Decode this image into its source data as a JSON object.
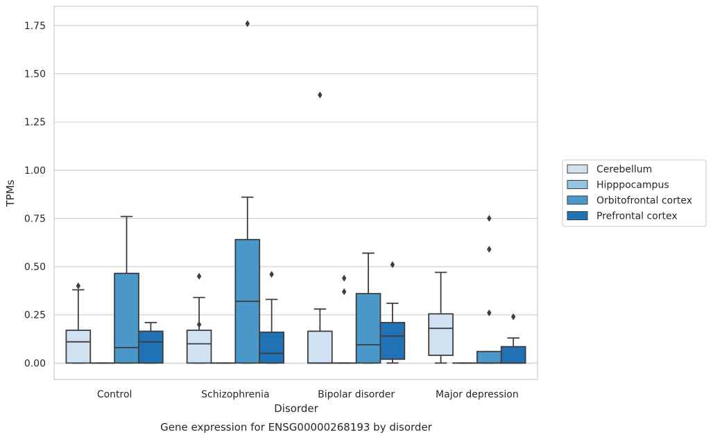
{
  "caption": "Gene expression for ENSG00000268193 by disorder",
  "chart_data": {
    "type": "box",
    "title": "",
    "xlabel": "Disorder",
    "ylabel": "TPMs",
    "ylim": [
      -0.085,
      1.85
    ],
    "yticks": [
      0.0,
      0.25,
      0.5,
      0.75,
      1.0,
      1.25,
      1.5,
      1.75
    ],
    "ytick_labels": [
      "0.00",
      "0.25",
      "0.50",
      "0.75",
      "1.00",
      "1.25",
      "1.50",
      "1.75"
    ],
    "grid": "horizontal",
    "legend_position": "right",
    "categories": [
      "Control",
      "Schizophrenia",
      "Bipolar disorder",
      "Major depression"
    ],
    "series": [
      {
        "name": "Cerebellum",
        "color": "#d0e1f2",
        "boxes": [
          {
            "whislo": 0.0,
            "q1": 0.0,
            "med": 0.11,
            "q3": 0.17,
            "whishi": 0.38,
            "fliers": [
              0.4
            ]
          },
          {
            "whislo": 0.0,
            "q1": 0.0,
            "med": 0.1,
            "q3": 0.17,
            "whishi": 0.34,
            "fliers": [
              0.2,
              0.45
            ]
          },
          {
            "whislo": 0.0,
            "q1": 0.0,
            "med": 0.0,
            "q3": 0.165,
            "whishi": 0.28,
            "fliers": [
              1.39
            ]
          },
          {
            "whislo": 0.0,
            "q1": 0.04,
            "med": 0.18,
            "q3": 0.255,
            "whishi": 0.47,
            "fliers": []
          }
        ]
      },
      {
        "name": "Hipppocampus",
        "color": "#94c4df",
        "boxes": [
          {
            "whislo": 0.0,
            "q1": 0.0,
            "med": 0.0,
            "q3": 0.0,
            "whishi": 0.0,
            "fliers": []
          },
          {
            "whislo": 0.0,
            "q1": 0.0,
            "med": 0.0,
            "q3": 0.0,
            "whishi": 0.0,
            "fliers": []
          },
          {
            "whislo": 0.0,
            "q1": 0.0,
            "med": 0.0,
            "q3": 0.0,
            "whishi": 0.0,
            "fliers": [
              0.37,
              0.44
            ]
          },
          {
            "whislo": 0.0,
            "q1": 0.0,
            "med": 0.0,
            "q3": 0.0,
            "whishi": 0.0,
            "fliers": []
          }
        ]
      },
      {
        "name": "Orbitofrontal cortex",
        "color": "#4a98c9",
        "boxes": [
          {
            "whislo": 0.0,
            "q1": 0.0,
            "med": 0.08,
            "q3": 0.465,
            "whishi": 0.76,
            "fliers": []
          },
          {
            "whislo": 0.0,
            "q1": 0.0,
            "med": 0.32,
            "q3": 0.64,
            "whishi": 0.86,
            "fliers": [
              1.76
            ]
          },
          {
            "whislo": 0.0,
            "q1": 0.0,
            "med": 0.095,
            "q3": 0.36,
            "whishi": 0.57,
            "fliers": []
          },
          {
            "whislo": 0.0,
            "q1": 0.0,
            "med": 0.0,
            "q3": 0.06,
            "whishi": 0.06,
            "fliers": [
              0.26,
              0.59,
              0.75
            ]
          }
        ]
      },
      {
        "name": "Prefrontal cortex",
        "color": "#2171b5",
        "boxes": [
          {
            "whislo": 0.0,
            "q1": 0.0,
            "med": 0.11,
            "q3": 0.165,
            "whishi": 0.21,
            "fliers": []
          },
          {
            "whislo": 0.0,
            "q1": 0.0,
            "med": 0.05,
            "q3": 0.16,
            "whishi": 0.33,
            "fliers": [
              0.46
            ]
          },
          {
            "whislo": 0.0,
            "q1": 0.02,
            "med": 0.14,
            "q3": 0.21,
            "whishi": 0.31,
            "fliers": [
              0.51
            ]
          },
          {
            "whislo": 0.0,
            "q1": 0.0,
            "med": 0.0,
            "q3": 0.085,
            "whishi": 0.13,
            "fliers": [
              0.24
            ]
          }
        ]
      }
    ]
  }
}
